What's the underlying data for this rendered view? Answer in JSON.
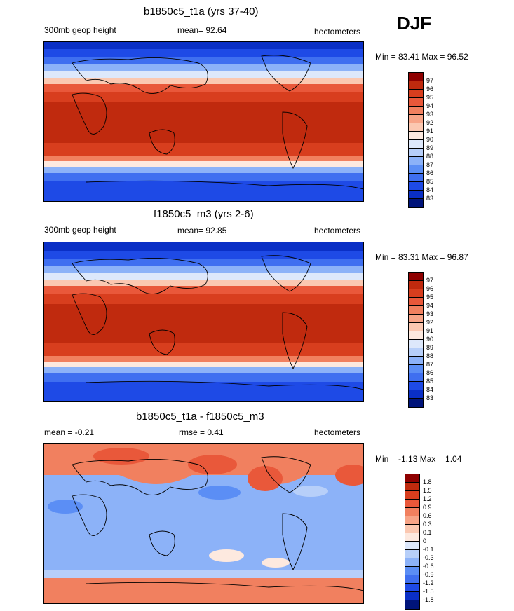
{
  "season": "DJF",
  "panels": [
    {
      "title": "b1850c5_t1a (yrs 37-40)",
      "left_label": "300mb geop height",
      "mid_label": "mean=  92.64",
      "units": "hectometers",
      "minmax": "Min =  83.41 Max =  96.52"
    },
    {
      "title": "f1850c5_m3 (yrs 2-6)",
      "left_label": "300mb geop height",
      "mid_label": "mean=  92.85",
      "units": "hectometers",
      "minmax": "Min =  83.31 Max =  96.87"
    },
    {
      "title": "b1850c5_t1a - f1850c5_m3",
      "left_label": "mean =  -0.21",
      "mid_label": "rmse =   0.41",
      "units": "hectometers",
      "minmax": "Min =  -1.13 Max =   1.04"
    }
  ],
  "colors": {
    "scale": [
      "#00147a",
      "#0a2fc6",
      "#1e4ae6",
      "#3f6ff0",
      "#5b8ef5",
      "#8cb2f8",
      "#b7cff9",
      "#dde8fb",
      "#fde9df",
      "#fbc8b1",
      "#f7a487",
      "#f1805f",
      "#e9583a",
      "#d83e1e",
      "#c02a0e",
      "#8e0000"
    ],
    "ocean_abs_high": "#c2361a",
    "land_outline": "#000000"
  },
  "chart_data": [
    {
      "type": "heatmap",
      "title": "b1850c5_t1a (yrs 37-40)",
      "variable": "300mb geop height",
      "units": "hectometers",
      "mean": 92.64,
      "min": 83.41,
      "max": 96.52,
      "colorbar_levels": [
        97,
        96,
        95,
        94,
        93,
        92,
        91,
        90,
        89,
        88,
        87,
        86,
        85,
        84,
        83
      ]
    },
    {
      "type": "heatmap",
      "title": "f1850c5_m3 (yrs 2-6)",
      "variable": "300mb geop height",
      "units": "hectometers",
      "mean": 92.85,
      "min": 83.31,
      "max": 96.87,
      "colorbar_levels": [
        97,
        96,
        95,
        94,
        93,
        92,
        91,
        90,
        89,
        88,
        87,
        86,
        85,
        84,
        83
      ]
    },
    {
      "type": "heatmap",
      "title": "b1850c5_t1a - f1850c5_m3",
      "units": "hectometers",
      "mean": -0.21,
      "rmse": 0.41,
      "min": -1.13,
      "max": 1.04,
      "colorbar_levels": [
        1.8,
        1.5,
        1.2,
        0.9,
        0.6,
        0.3,
        0.1,
        0,
        -0.1,
        -0.3,
        -0.6,
        -0.9,
        -1.2,
        -1.5,
        -1.8
      ]
    }
  ]
}
